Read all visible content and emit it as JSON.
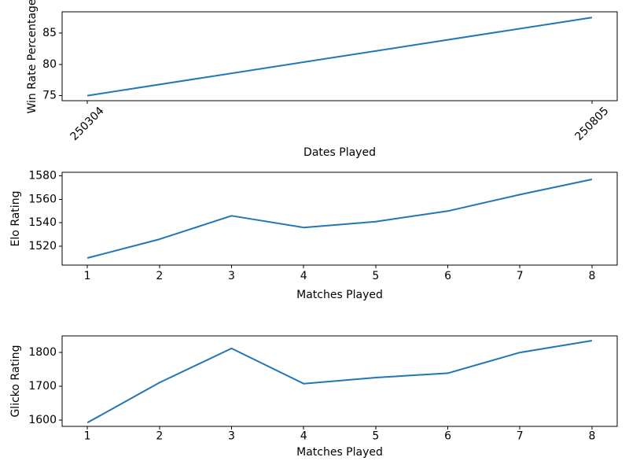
{
  "figure": {
    "background": "#ffffff",
    "line_color": "#1f77b4",
    "spine_color": "#000000",
    "text_color": "#000000"
  },
  "chart_data": [
    {
      "type": "line",
      "title": "",
      "xlabel": "Dates Played",
      "ylabel": "Win Rate Percentage",
      "x_tick_labels": [
        "250304",
        "250805"
      ],
      "x": [
        0,
        1
      ],
      "values": [
        75.0,
        87.5
      ],
      "xlim": [
        -0.05,
        1.05
      ],
      "ylim": [
        74.2,
        88.4
      ],
      "yticks": [
        75,
        80,
        85
      ],
      "xtick_rotation": 45,
      "grid": false,
      "legend": "none"
    },
    {
      "type": "line",
      "title": "",
      "xlabel": "Matches Played",
      "ylabel": "Elo Rating",
      "x_tick_labels": [
        "1",
        "2",
        "3",
        "4",
        "5",
        "6",
        "7",
        "8"
      ],
      "x": [
        1,
        2,
        3,
        4,
        5,
        6,
        7,
        8
      ],
      "values": [
        1510,
        1526,
        1546,
        1536,
        1541,
        1550,
        1564,
        1577
      ],
      "xlim": [
        0.65,
        8.35
      ],
      "ylim": [
        1504,
        1583
      ],
      "yticks": [
        1520,
        1540,
        1560,
        1580
      ],
      "xtick_rotation": 0,
      "grid": false,
      "legend": "none"
    },
    {
      "type": "line",
      "title": "",
      "xlabel": "Matches Played",
      "ylabel": "Glicko Rating",
      "x_tick_labels": [
        "1",
        "2",
        "3",
        "4",
        "5",
        "6",
        "7",
        "8"
      ],
      "x": [
        1,
        2,
        3,
        4,
        5,
        6,
        7,
        8
      ],
      "values": [
        1593,
        1711,
        1812,
        1708,
        1726,
        1739,
        1800,
        1835
      ],
      "xlim": [
        0.65,
        8.35
      ],
      "ylim": [
        1582,
        1849
      ],
      "yticks": [
        1600,
        1700,
        1800
      ],
      "xtick_rotation": 0,
      "grid": false,
      "legend": "none"
    }
  ]
}
